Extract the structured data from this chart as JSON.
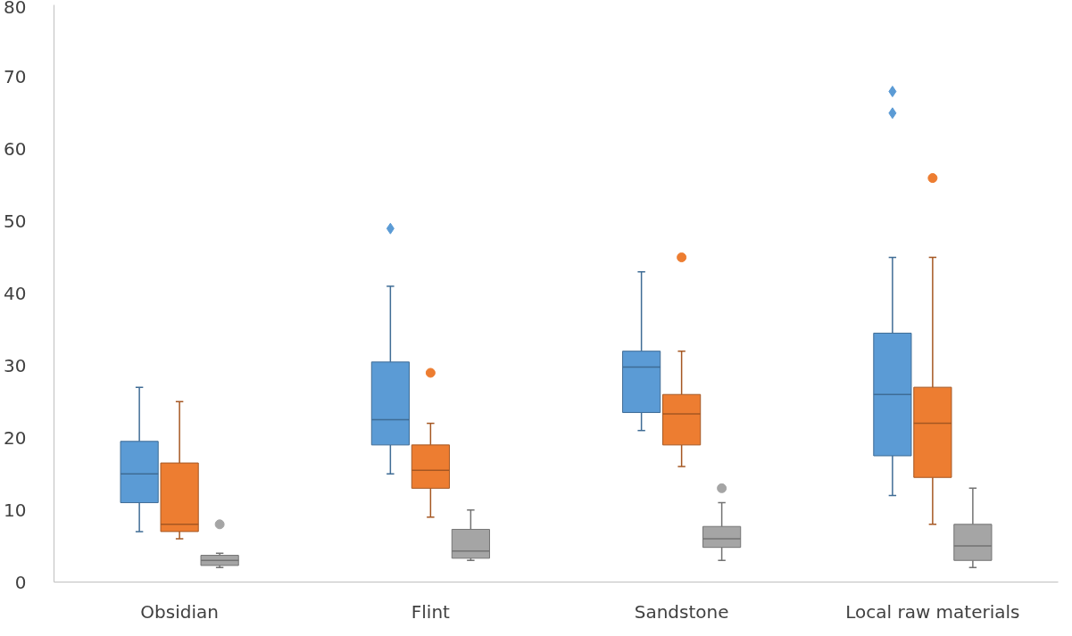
{
  "chart_data": {
    "type": "box",
    "categories": [
      "Obsidian",
      "Flint",
      "Sandstone",
      "Local raw materials"
    ],
    "ylim": [
      0,
      80
    ],
    "yticks": [
      0,
      10,
      20,
      30,
      40,
      50,
      60,
      70,
      80
    ],
    "grid": false,
    "series": [
      {
        "color": "#5b9bd5",
        "marker": "diamond",
        "boxes": [
          {
            "low": 7,
            "q1": 11,
            "median": 15,
            "q3": 19.5,
            "high": 27
          },
          {
            "low": 15,
            "q1": 19,
            "median": 22.5,
            "q3": 30.5,
            "high": 41,
            "outliers": [
              49
            ]
          },
          {
            "low": 21,
            "q1": 23.5,
            "median": 29.8,
            "q3": 32,
            "high": 43
          },
          {
            "low": 12,
            "q1": 17.5,
            "median": 26,
            "q3": 34.5,
            "high": 45,
            "outliers": [
              65,
              68
            ]
          }
        ]
      },
      {
        "color": "#ed7d31",
        "marker": "circle",
        "boxes": [
          {
            "low": 6,
            "q1": 7,
            "median": 8,
            "q3": 16.5,
            "high": 25
          },
          {
            "low": 9,
            "q1": 13,
            "median": 15.5,
            "q3": 19,
            "high": 22,
            "outliers": [
              29
            ]
          },
          {
            "low": 16,
            "q1": 19,
            "median": 23.3,
            "q3": 26,
            "high": 32,
            "outliers": [
              45
            ]
          },
          {
            "low": 8,
            "q1": 14.5,
            "median": 22,
            "q3": 27,
            "high": 45,
            "outliers": [
              56
            ]
          }
        ]
      },
      {
        "color": "#a5a5a5",
        "marker": "circle",
        "boxes": [
          {
            "low": 2,
            "q1": 2.3,
            "median": 3,
            "q3": 3.7,
            "high": 4,
            "outliers": [
              8
            ]
          },
          {
            "low": 3,
            "q1": 3.3,
            "median": 4.3,
            "q3": 7.3,
            "high": 10
          },
          {
            "low": 3,
            "q1": 4.8,
            "median": 6,
            "q3": 7.7,
            "high": 11,
            "outliers": [
              13
            ]
          },
          {
            "low": 2,
            "q1": 3,
            "median": 5,
            "q3": 8,
            "high": 13
          }
        ]
      }
    ]
  }
}
